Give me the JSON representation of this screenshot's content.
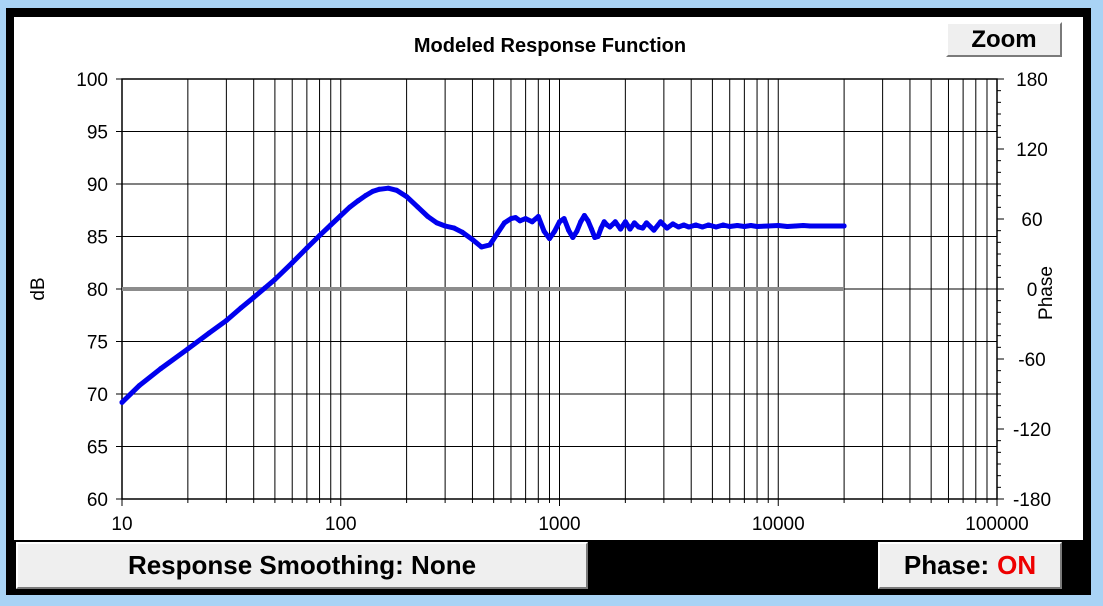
{
  "toolbar": {
    "zoom_label": "Zoom",
    "smoothing_label": "Response Smoothing: None",
    "phase_label": "Phase:",
    "phase_value": "ON"
  },
  "colors": {
    "window_bg": "#a9d3f5",
    "response_curve": "#0000ee",
    "phase_line": "#8c8c8c",
    "phase_state": "#ee0000"
  },
  "chart_data": {
    "type": "line",
    "title": "Modeled Response Function",
    "xlabel": "",
    "ylabel": "dB",
    "y2label": "Phase",
    "x_scale": "log",
    "xlim": [
      10,
      100000
    ],
    "ylim": [
      60,
      100
    ],
    "y2lim": [
      -180,
      180
    ],
    "grid": true,
    "x_ticks": [
      "10",
      "100",
      "1000",
      "10000",
      "100000"
    ],
    "y_ticks": [
      "100",
      "95",
      "90",
      "85",
      "80",
      "75",
      "70",
      "65",
      "60"
    ],
    "y2_ticks": [
      "180",
      "120",
      "60",
      "0",
      "-60",
      "-120",
      "-180"
    ],
    "series": [
      {
        "axis": "left",
        "x": [
          10,
          12,
          15,
          20,
          25,
          30,
          35,
          40,
          45,
          50,
          60,
          70,
          80,
          90,
          100,
          110,
          120,
          130,
          140,
          150,
          165,
          180,
          200,
          225,
          250,
          275,
          300,
          330,
          360,
          400,
          440,
          480,
          520,
          560,
          600,
          630,
          660,
          700,
          750,
          800,
          850,
          900,
          950,
          1000,
          1050,
          1100,
          1150,
          1200,
          1250,
          1300,
          1350,
          1400,
          1450,
          1500,
          1550,
          1600,
          1650,
          1700,
          1800,
          1900,
          2000,
          2100,
          2200,
          2300,
          2400,
          2500,
          2700,
          2900,
          3100,
          3300,
          3500,
          3700,
          3900,
          4200,
          4500,
          4800,
          5200,
          5600,
          6000,
          6500,
          7000,
          7500,
          8000,
          9000,
          10000,
          11000,
          12000,
          13000,
          14000,
          15000,
          16000,
          17000,
          18000,
          19000,
          20000
        ],
        "values": [
          69.2,
          70.8,
          72.4,
          74.3,
          75.8,
          77.0,
          78.2,
          79.2,
          80.1,
          80.9,
          82.5,
          83.9,
          85.1,
          86.1,
          87.0,
          87.8,
          88.4,
          88.9,
          89.3,
          89.5,
          89.6,
          89.4,
          88.8,
          87.8,
          86.9,
          86.3,
          86.0,
          85.8,
          85.4,
          84.7,
          84.0,
          84.2,
          85.3,
          86.3,
          86.7,
          86.8,
          86.5,
          86.7,
          86.4,
          86.9,
          85.5,
          84.8,
          85.5,
          86.4,
          86.7,
          85.6,
          84.9,
          85.5,
          86.4,
          87.0,
          86.5,
          85.7,
          84.9,
          85.0,
          85.8,
          86.4,
          86.1,
          85.9,
          86.4,
          85.7,
          86.4,
          85.7,
          86.3,
          85.9,
          85.8,
          86.3,
          85.6,
          86.4,
          85.8,
          86.2,
          85.9,
          86.1,
          85.9,
          86.1,
          85.9,
          86.1,
          85.9,
          86.1,
          85.95,
          86.05,
          85.95,
          86.05,
          85.95,
          86.0,
          86.05,
          85.95,
          86.0,
          86.05,
          86.0,
          86.0,
          86.0,
          86.0,
          86.0,
          86.0,
          86.0
        ]
      },
      {
        "axis": "right",
        "x": [
          10,
          20000
        ],
        "values": [
          0,
          0
        ]
      }
    ]
  }
}
